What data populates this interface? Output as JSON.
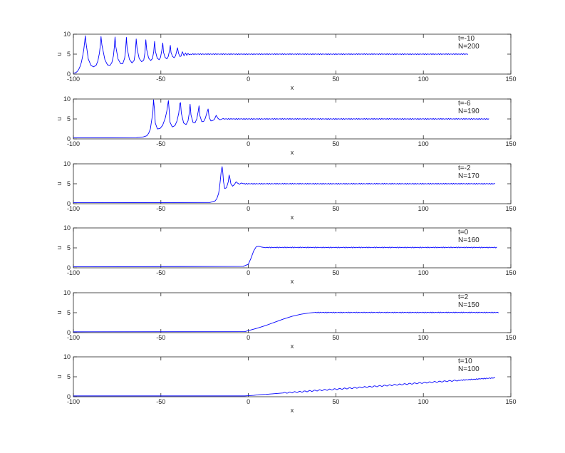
{
  "chart_data": [
    {
      "type": "line",
      "xlabel": "x",
      "ylabel": "u",
      "xlim": [
        -100,
        150
      ],
      "ylim": [
        0,
        10
      ],
      "xticks": [
        "-100",
        "-50",
        "0",
        "50",
        "100",
        "150"
      ],
      "yticks": [
        "0",
        "5",
        "10"
      ],
      "annotation": [
        "t=-10",
        "N=200"
      ],
      "series": [
        {
          "color": "#0000ff",
          "x": [
            -100,
            -99,
            -98.2,
            -97.5,
            -96.8,
            -96.1,
            -95.4,
            -94.8,
            -94.1,
            -93.5,
            -93.2,
            -92.9,
            -91.5,
            -90.0,
            -88.5,
            -87.0,
            -86.0,
            -85.1,
            -84.6,
            -84.2,
            -83.7,
            -82.0,
            -80.5,
            -79.0,
            -78.0,
            -77.1,
            -76.6,
            -76.2,
            -75.8,
            -74.5,
            -73.0,
            -71.8,
            -70.7,
            -70.2,
            -69.7,
            -69.3,
            -68.0,
            -66.5,
            -65.3,
            -64.6,
            -64.1,
            -63.6,
            -62.4,
            -61.0,
            -59.8,
            -59.1,
            -58.6,
            -58.1,
            -57.0,
            -55.8,
            -54.8,
            -54.1,
            -53.6,
            -53.1,
            -52.1,
            -51.0,
            -50.2,
            -49.5,
            -48.9,
            -48.5,
            -47.6,
            -46.6,
            -45.8,
            -45.1,
            -44.6,
            -44.2,
            -43.3,
            -42.4,
            -41.6,
            -41.0,
            -40.5,
            -39.9,
            -39.1,
            -38.5,
            -37.7,
            -36.8,
            -35.9,
            -35.2,
            -34.5,
            -33.8,
            -33.0,
            125.5
          ],
          "y": [
            0.25,
            0.3,
            0.5,
            0.8,
            1.3,
            2.0,
            3.0,
            4.3,
            6.0,
            8.2,
            9.6,
            8.2,
            3.8,
            2.2,
            1.8,
            2.2,
            3.3,
            5.3,
            7.3,
            9.4,
            7.3,
            3.6,
            2.3,
            2.2,
            2.9,
            4.6,
            6.8,
            9.3,
            7.0,
            3.8,
            2.6,
            2.6,
            4.0,
            5.8,
            9.2,
            6.6,
            3.7,
            2.8,
            3.4,
            5.4,
            8.8,
            6.4,
            3.9,
            3.1,
            3.5,
            5.4,
            8.6,
            6.1,
            4.0,
            3.4,
            3.9,
            5.6,
            8.2,
            5.7,
            4.0,
            3.6,
            4.2,
            5.9,
            7.8,
            5.5,
            4.2,
            3.8,
            4.4,
            5.8,
            7.2,
            5.4,
            4.4,
            4.1,
            4.6,
            5.7,
            6.6,
            5.2,
            4.4,
            4.5,
            5.6,
            4.6,
            5.3,
            4.7,
            5.2,
            4.85,
            5.0,
            5.0
          ]
        }
      ]
    },
    {
      "type": "line",
      "xlabel": "x",
      "ylabel": "u",
      "xlim": [
        -100,
        150
      ],
      "ylim": [
        0,
        10
      ],
      "xticks": [
        "-100",
        "-50",
        "0",
        "50",
        "100",
        "150"
      ],
      "yticks": [
        "0",
        "5",
        "10"
      ],
      "annotation": [
        "t=-6",
        "N=190"
      ],
      "series": [
        {
          "color": "#0000ff",
          "x": [
            -100,
            -64,
            -60,
            -58,
            -57,
            -56,
            -55.5,
            -54.6,
            -54.2,
            -53.7,
            -53.2,
            -52.0,
            -50.5,
            -49.0,
            -47.5,
            -46.6,
            -45.7,
            -45.3,
            -44.8,
            -43.5,
            -42.0,
            -40.8,
            -39.8,
            -39.2,
            -38.8,
            -38.3,
            -37.0,
            -35.6,
            -34.5,
            -33.8,
            -33.3,
            -32.8,
            -31.6,
            -30.5,
            -29.5,
            -28.7,
            -28.2,
            -27.7,
            -26.6,
            -25.5,
            -24.6,
            -23.6,
            -23.0,
            -22.4,
            -21.4,
            -20.4,
            -19.4,
            -18.4,
            -17.3,
            -16.2,
            -15.0,
            137.5
          ],
          "y": [
            0.25,
            0.3,
            0.5,
            0.8,
            1.4,
            2.5,
            4.0,
            6.5,
            9.8,
            7.6,
            4.0,
            2.5,
            2.6,
            3.4,
            5.2,
            7.0,
            9.6,
            7.4,
            4.2,
            3.0,
            3.3,
            4.5,
            6.4,
            8.8,
            9.1,
            6.4,
            4.0,
            3.6,
            4.5,
            6.4,
            8.7,
            6.0,
            4.1,
            4.0,
            5.0,
            6.8,
            8.3,
            5.8,
            4.3,
            4.4,
            5.2,
            6.7,
            7.5,
            5.4,
            4.5,
            4.6,
            4.9,
            5.9,
            5.1,
            4.8,
            5.0,
            5.0
          ]
        }
      ]
    },
    {
      "type": "line",
      "xlabel": "x",
      "ylabel": "u",
      "xlim": [
        -100,
        150
      ],
      "ylim": [
        0,
        10
      ],
      "xticks": [
        "-100",
        "-50",
        "0",
        "50",
        "100",
        "150"
      ],
      "yticks": [
        "0",
        "5",
        "10"
      ],
      "annotation": [
        "t=-2",
        "N=170"
      ],
      "series": [
        {
          "color": "#0000ff",
          "x": [
            -100,
            -22,
            -19,
            -18,
            -17,
            -16.5,
            -16.0,
            -15.5,
            -15.0,
            -14.6,
            -14.2,
            -13.5,
            -12.5,
            -11.5,
            -11.0,
            -10.5,
            -10.0,
            -9.0,
            -8.0,
            -7.0,
            -6.0,
            -5.0,
            -4.0,
            -3.0,
            141
          ],
          "y": [
            0.25,
            0.3,
            0.7,
            1.3,
            2.6,
            4.0,
            6.0,
            8.2,
            9.3,
            7.8,
            5.5,
            3.8,
            4.0,
            5.5,
            7.2,
            6.3,
            5.0,
            4.4,
            4.8,
            5.5,
            5.1,
            4.9,
            5.2,
            5.0,
            5.0
          ]
        }
      ]
    },
    {
      "type": "line",
      "xlabel": "x",
      "ylabel": "u",
      "xlim": [
        -100,
        150
      ],
      "ylim": [
        0,
        10
      ],
      "xticks": [
        "-100",
        "-50",
        "0",
        "50",
        "100",
        "150"
      ],
      "yticks": [
        "0",
        "5",
        "10"
      ],
      "annotation": [
        "t=0",
        "N=160"
      ],
      "series": [
        {
          "color": "#0000ff",
          "x": [
            -100,
            -3,
            0,
            1.5,
            3,
            4.5,
            6,
            7.5,
            9,
            142
          ],
          "y": [
            0.25,
            0.35,
            0.9,
            2.4,
            4.2,
            5.3,
            5.4,
            5.2,
            5.1,
            5.1
          ]
        }
      ]
    },
    {
      "type": "line",
      "xlabel": "x",
      "ylabel": "u",
      "xlim": [
        -100,
        150
      ],
      "ylim": [
        0,
        10
      ],
      "xticks": [
        "-100",
        "-50",
        "0",
        "50",
        "100",
        "150"
      ],
      "yticks": [
        "0",
        "5",
        "10"
      ],
      "annotation": [
        "t=2",
        "N=150"
      ],
      "series": [
        {
          "color": "#0000ff",
          "x": [
            -100,
            -2,
            0,
            5,
            10,
            15,
            20,
            25,
            30,
            35,
            38,
            143
          ],
          "y": [
            0.2,
            0.25,
            0.5,
            1.1,
            1.8,
            2.6,
            3.4,
            4.1,
            4.6,
            4.95,
            5.05,
            5.05
          ]
        }
      ]
    },
    {
      "type": "line",
      "xlabel": "x",
      "ylabel": "u",
      "xlim": [
        -100,
        150
      ],
      "ylim": [
        0,
        10
      ],
      "xticks": [
        "-100",
        "-50",
        "0",
        "50",
        "100",
        "150"
      ],
      "yticks": [
        "0",
        "5",
        "10"
      ],
      "annotation": [
        "t=10",
        "N=100"
      ],
      "series": [
        {
          "color": "#0000ff",
          "x": [
            -100,
            -2,
            0,
            3,
            6,
            10,
            20,
            30,
            40,
            60,
            80,
            100,
            120,
            141
          ],
          "y": [
            0.2,
            0.2,
            0.25,
            0.35,
            0.5,
            0.6,
            0.95,
            1.25,
            1.6,
            2.2,
            2.85,
            3.5,
            4.1,
            4.75
          ]
        }
      ]
    }
  ]
}
